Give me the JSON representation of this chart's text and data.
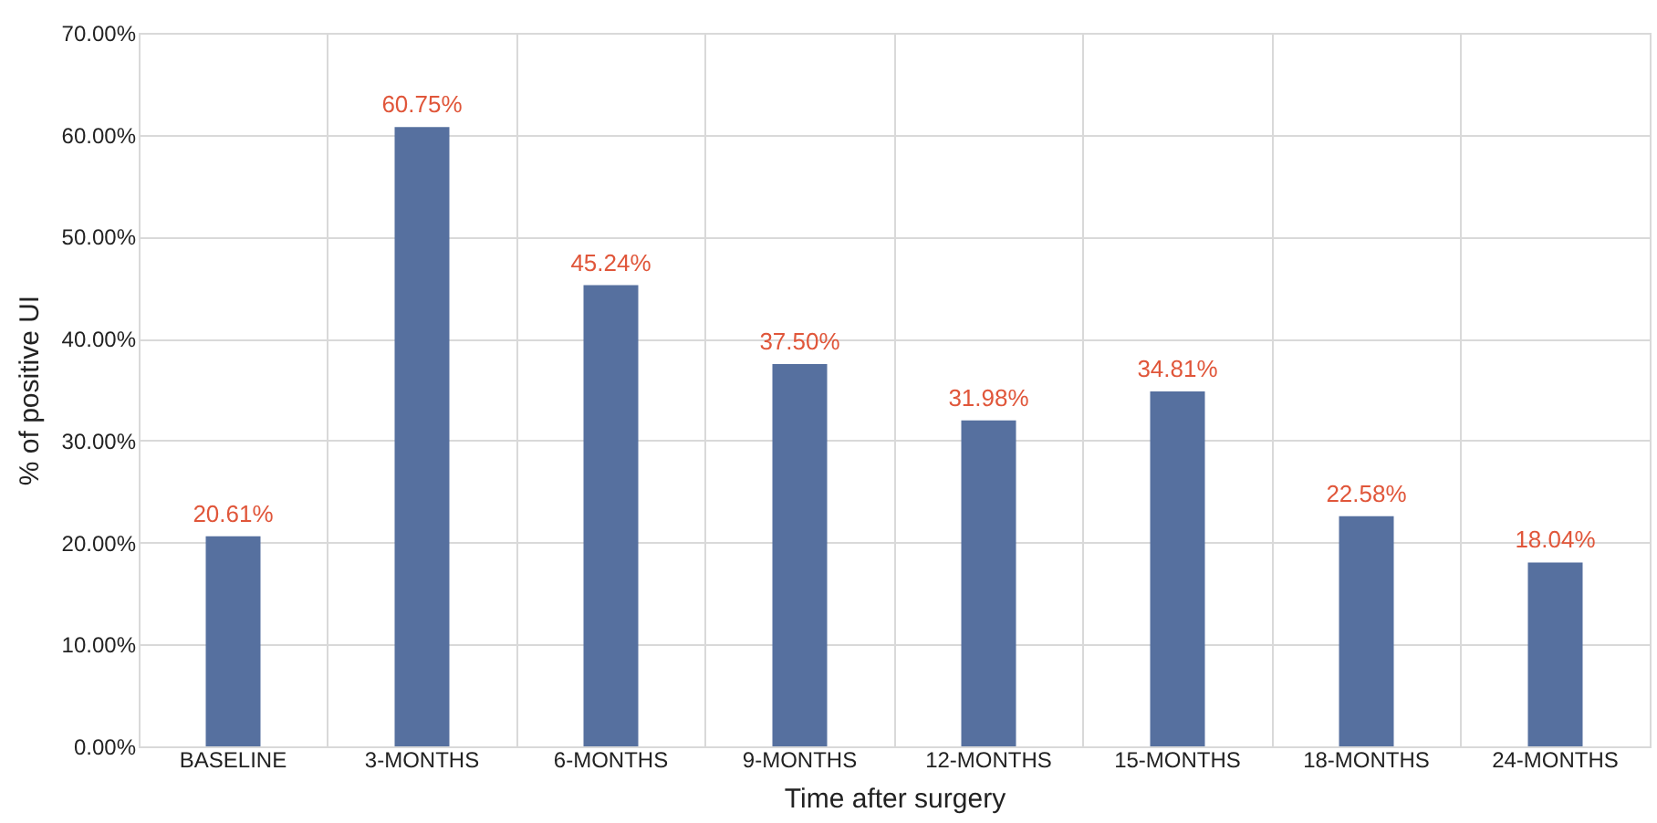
{
  "chart_data": {
    "type": "bar",
    "xlabel": "Time after surgery",
    "ylabel": "% of positive UI",
    "categories": [
      "BASELINE",
      "3-MONTHS",
      "6-MONTHS",
      "9-MONTHS",
      "12-MONTHS",
      "15-MONTHS",
      "18-MONTHS",
      "24-MONTHS"
    ],
    "values": [
      20.61,
      60.75,
      45.24,
      37.5,
      31.98,
      34.81,
      22.58,
      18.04
    ],
    "value_labels": [
      "20.61%",
      "60.75%",
      "45.24%",
      "37.50%",
      "31.98%",
      "34.81%",
      "22.58%",
      "18.04%"
    ],
    "color": "#56709f",
    "ylim": [
      0,
      70
    ],
    "yticks": [
      {
        "value": 0,
        "label": "0.00%"
      },
      {
        "value": 10,
        "label": "10.00%"
      },
      {
        "value": 20,
        "label": "20.00%"
      },
      {
        "value": 30,
        "label": "30.00%"
      },
      {
        "value": 40,
        "label": "40.00%"
      },
      {
        "value": 50,
        "label": "50.00%"
      },
      {
        "value": 60,
        "label": "60.00%"
      },
      {
        "value": 70,
        "label": "70.00%"
      }
    ],
    "grid": true
  }
}
